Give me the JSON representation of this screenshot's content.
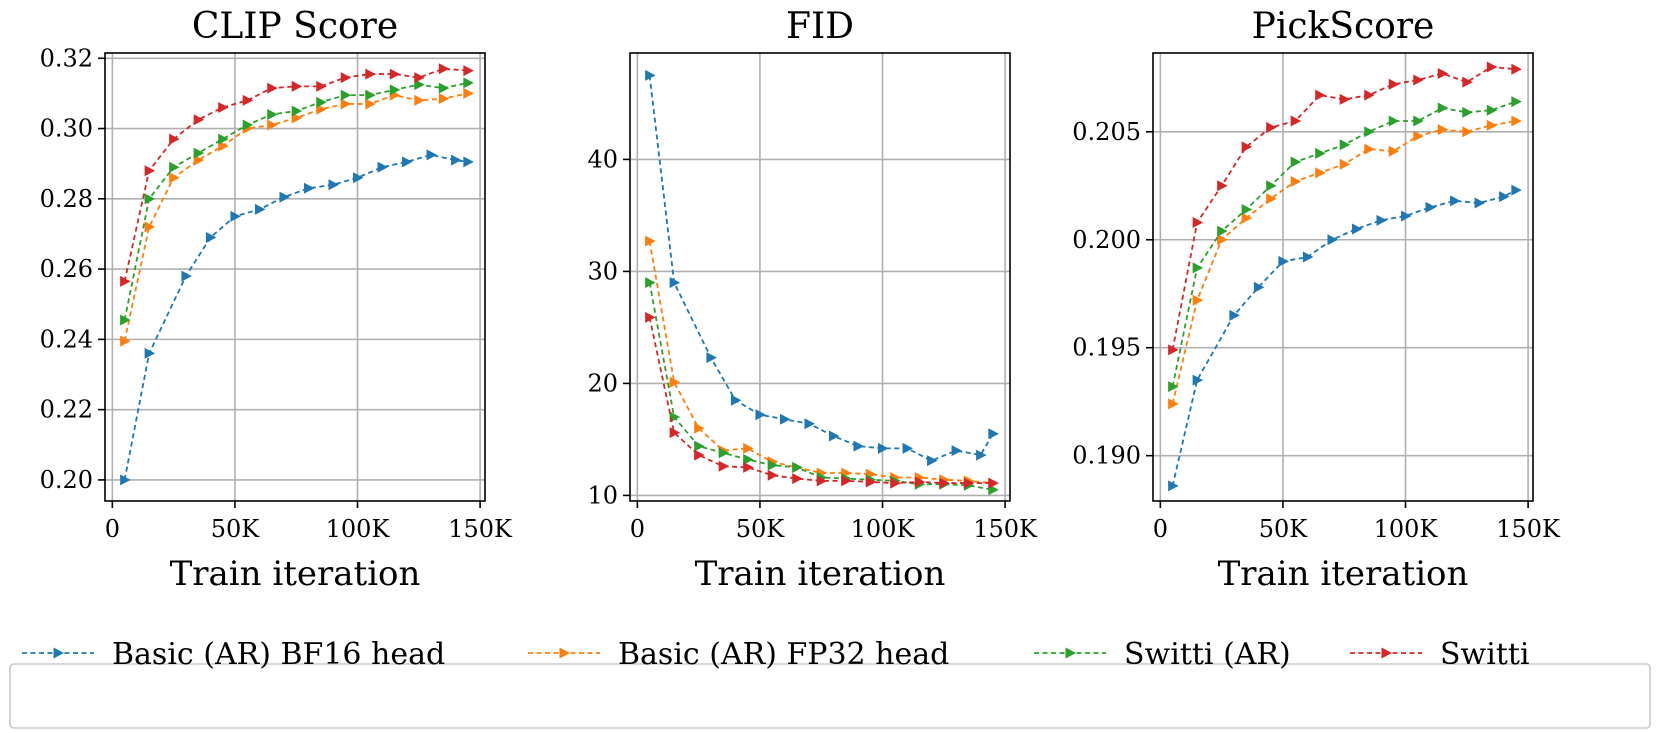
{
  "figure": {
    "legend": {
      "location": "bottom",
      "entries": [
        {
          "label": "Basic (AR) BF16 head",
          "color": "#1f77b4"
        },
        {
          "label": "Basic (AR) FP32 head",
          "color": "#ff7f0e"
        },
        {
          "label": "Switti (AR)",
          "color": "#2ca02c"
        },
        {
          "label": "Switti",
          "color": "#d62728"
        }
      ]
    }
  },
  "chart_data": [
    {
      "type": "line",
      "title": "CLIP Score",
      "xlabel": "Train iteration",
      "ylabel": "",
      "grid": true,
      "xlim": [
        -3000,
        152000
      ],
      "ylim": [
        0.194,
        0.3215
      ],
      "xticks": [
        0,
        50000,
        100000,
        150000
      ],
      "xtick_labels": [
        "0",
        "50K",
        "100K",
        "150K"
      ],
      "yticks": [
        0.2,
        0.22,
        0.24,
        0.26,
        0.28,
        0.3,
        0.32
      ],
      "ytick_labels": [
        "0.20",
        "0.22",
        "0.24",
        "0.26",
        "0.28",
        "0.30",
        "0.32"
      ],
      "x": [
        5000,
        15000,
        25000,
        35000,
        45000,
        55000,
        65000,
        75000,
        85000,
        95000,
        105000,
        115000,
        125000,
        135000,
        145000
      ],
      "series": [
        {
          "name": "Basic (AR) BF16 head",
          "color": "#1f77b4",
          "x": [
            5000,
            15000,
            30000,
            40000,
            50000,
            60000,
            70000,
            80000,
            90000,
            100000,
            110000,
            120000,
            130000,
            140000,
            145000
          ],
          "values": [
            0.2,
            0.236,
            0.258,
            0.269,
            0.275,
            0.277,
            0.2805,
            0.283,
            0.284,
            0.286,
            0.289,
            0.2905,
            0.2925,
            0.291,
            0.2905
          ]
        },
        {
          "name": "Basic (AR) FP32 head",
          "color": "#ff7f0e",
          "values": [
            0.2395,
            0.272,
            0.286,
            0.291,
            0.295,
            0.3,
            0.301,
            0.303,
            0.3055,
            0.307,
            0.307,
            0.3095,
            0.308,
            0.3085,
            0.31
          ]
        },
        {
          "name": "Switti (AR)",
          "color": "#2ca02c",
          "values": [
            0.2455,
            0.28,
            0.289,
            0.293,
            0.297,
            0.301,
            0.304,
            0.305,
            0.3075,
            0.3095,
            0.3095,
            0.311,
            0.3125,
            0.3115,
            0.313
          ]
        },
        {
          "name": "Switti",
          "color": "#d62728",
          "values": [
            0.2565,
            0.288,
            0.297,
            0.3025,
            0.306,
            0.308,
            0.3115,
            0.312,
            0.312,
            0.3145,
            0.3155,
            0.3155,
            0.3145,
            0.317,
            0.3165
          ]
        }
      ]
    },
    {
      "type": "line",
      "title": "FID",
      "xlabel": "Train iteration",
      "ylabel": "",
      "grid": true,
      "xlim": [
        -3000,
        152000
      ],
      "ylim": [
        9.5,
        49.5
      ],
      "xticks": [
        0,
        50000,
        100000,
        150000
      ],
      "xtick_labels": [
        "0",
        "50K",
        "100K",
        "150K"
      ],
      "yticks": [
        10,
        20,
        30,
        40
      ],
      "ytick_labels": [
        "10",
        "20",
        "30",
        "40"
      ],
      "x": [
        5000,
        15000,
        25000,
        35000,
        45000,
        55000,
        65000,
        75000,
        85000,
        95000,
        105000,
        115000,
        125000,
        135000,
        145000
      ],
      "series": [
        {
          "name": "Basic (AR) BF16 head",
          "color": "#1f77b4",
          "x": [
            5000,
            15000,
            30000,
            40000,
            50000,
            60000,
            70000,
            80000,
            90000,
            100000,
            110000,
            120000,
            130000,
            140000,
            145000
          ],
          "values": [
            47.5,
            29.0,
            22.3,
            18.5,
            17.2,
            16.8,
            16.4,
            15.3,
            14.4,
            14.2,
            14.2,
            13.1,
            14.0,
            13.6,
            15.5
          ]
        },
        {
          "name": "Basic (AR) FP32 head",
          "color": "#ff7f0e",
          "values": [
            32.7,
            20.1,
            16.0,
            14.0,
            14.2,
            13.0,
            12.5,
            12.0,
            12.0,
            11.9,
            11.6,
            11.6,
            11.4,
            11.3,
            11.1
          ]
        },
        {
          "name": "Switti (AR)",
          "color": "#2ca02c",
          "values": [
            29.0,
            17.0,
            14.4,
            13.8,
            13.2,
            12.7,
            12.5,
            11.6,
            11.5,
            11.4,
            11.3,
            11.0,
            11.0,
            10.9,
            10.5
          ]
        },
        {
          "name": "Switti",
          "color": "#d62728",
          "values": [
            25.9,
            15.6,
            13.6,
            12.6,
            12.5,
            11.8,
            11.5,
            11.3,
            11.3,
            11.2,
            11.1,
            11.2,
            11.1,
            11.1,
            11.1
          ]
        }
      ]
    },
    {
      "type": "line",
      "title": "PickScore",
      "xlabel": "Train iteration",
      "ylabel": "",
      "grid": true,
      "xlim": [
        -3000,
        152000
      ],
      "ylim": [
        0.1879,
        0.20865
      ],
      "xticks": [
        0,
        50000,
        100000,
        150000
      ],
      "xtick_labels": [
        "0",
        "50K",
        "100K",
        "150K"
      ],
      "yticks": [
        0.19,
        0.195,
        0.2,
        0.205
      ],
      "ytick_labels": [
        "0.190",
        "0.195",
        "0.200",
        "0.205"
      ],
      "x": [
        5000,
        15000,
        25000,
        35000,
        45000,
        55000,
        65000,
        75000,
        85000,
        95000,
        105000,
        115000,
        125000,
        135000,
        145000
      ],
      "series": [
        {
          "name": "Basic (AR) BF16 head",
          "color": "#1f77b4",
          "x": [
            5000,
            15000,
            30000,
            40000,
            50000,
            60000,
            70000,
            80000,
            90000,
            100000,
            110000,
            120000,
            130000,
            140000,
            145000
          ],
          "values": [
            0.1886,
            0.1935,
            0.1965,
            0.1978,
            0.199,
            0.1992,
            0.2,
            0.2005,
            0.2009,
            0.2011,
            0.2015,
            0.2018,
            0.2017,
            0.202,
            0.2023
          ]
        },
        {
          "name": "Basic (AR) FP32 head",
          "color": "#ff7f0e",
          "values": [
            0.1924,
            0.1972,
            0.2,
            0.201,
            0.2019,
            0.2027,
            0.2031,
            0.2035,
            0.2042,
            0.2041,
            0.2048,
            0.2051,
            0.205,
            0.2053,
            0.2055
          ]
        },
        {
          "name": "Switti (AR)",
          "color": "#2ca02c",
          "values": [
            0.1932,
            0.1987,
            0.2004,
            0.2014,
            0.2025,
            0.2036,
            0.204,
            0.2044,
            0.205,
            0.2055,
            0.2055,
            0.2061,
            0.2059,
            0.206,
            0.2064
          ]
        },
        {
          "name": "Switti",
          "color": "#d62728",
          "values": [
            0.1949,
            0.2008,
            0.2025,
            0.2043,
            0.2052,
            0.2055,
            0.2067,
            0.2065,
            0.2067,
            0.2072,
            0.2074,
            0.2077,
            0.2073,
            0.208,
            0.2079
          ]
        }
      ]
    }
  ]
}
